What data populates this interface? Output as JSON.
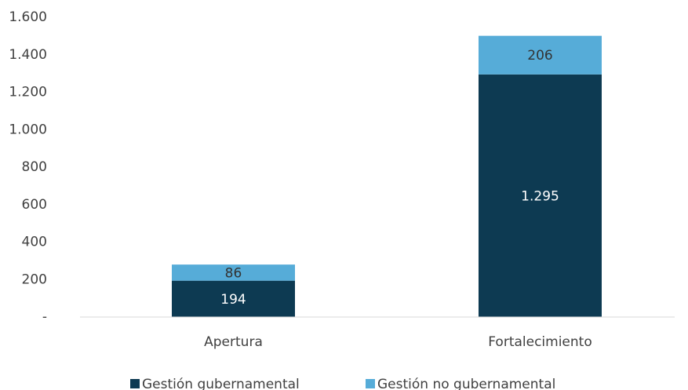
{
  "chart_data": {
    "type": "bar",
    "stacked": true,
    "categories": [
      "Apertura",
      "Fortalecimiento"
    ],
    "series": [
      {
        "name": "Gestión gubernamental",
        "color": "#0d3a52",
        "values": [
          194,
          1295
        ],
        "value_labels": [
          "194",
          "1.295"
        ]
      },
      {
        "name": "Gestión no gubernamental",
        "color": "#56acd8",
        "values": [
          86,
          206
        ],
        "value_labels": [
          "86",
          "206"
        ]
      }
    ],
    "ylim": [
      0,
      1600
    ],
    "yticks": [
      {
        "value": 0,
        "label": "-"
      },
      200,
      400,
      600,
      800,
      {
        "value": 1000,
        "label": "1.000"
      },
      {
        "value": 1200,
        "label": "1.200"
      },
      {
        "value": 1400,
        "label": "1.400"
      },
      {
        "value": 1600,
        "label": "1.600"
      }
    ],
    "grid": false,
    "legend": "bottom"
  }
}
